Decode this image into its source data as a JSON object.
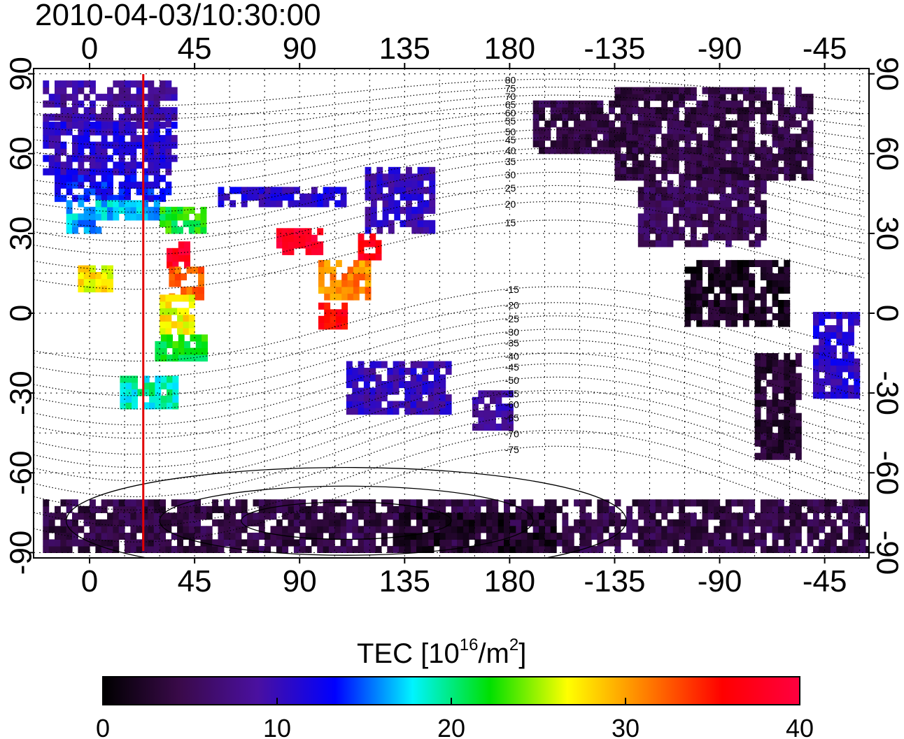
{
  "title": "2010-04-03/10:30:00",
  "map": {
    "lon_ticks": [
      "0",
      "45",
      "90",
      "135",
      "180",
      "-135",
      "-90",
      "-45"
    ],
    "lat_ticks": [
      "90",
      "60",
      "30",
      "0",
      "-30",
      "-60",
      "-90"
    ],
    "lon_tick_values": [
      0,
      45,
      90,
      135,
      180,
      225,
      270,
      315
    ],
    "lat_tick_values": [
      90,
      60,
      30,
      0,
      -30,
      -60,
      -90
    ],
    "lon_range": [
      -24,
      334
    ],
    "lat_range": [
      -92,
      92
    ],
    "marker_longitude": 23,
    "marker_color": "#e00000",
    "dip_contours": [
      {
        "label": "80",
        "lat": 83,
        "amp": 5
      },
      {
        "label": "75",
        "lat": 79,
        "amp": 6
      },
      {
        "label": "70",
        "lat": 75,
        "amp": 7
      },
      {
        "label": "65",
        "lat": 71,
        "amp": 8
      },
      {
        "label": "60",
        "lat": 67,
        "amp": 9
      },
      {
        "label": "55",
        "lat": 63,
        "amp": 10
      },
      {
        "label": "50",
        "lat": 58,
        "amp": 11
      },
      {
        "label": "45",
        "lat": 54,
        "amp": 12
      },
      {
        "label": "40",
        "lat": 50,
        "amp": 12
      },
      {
        "label": "35",
        "lat": 45,
        "amp": 13
      },
      {
        "label": "30",
        "lat": 40,
        "amp": 13
      },
      {
        "label": "25",
        "lat": 35,
        "amp": 13
      },
      {
        "label": "20",
        "lat": 29,
        "amp": 13
      },
      {
        "label": "15",
        "lat": 22,
        "amp": 13
      },
      {
        "label": "-15",
        "lat": -4,
        "amp": 14
      },
      {
        "label": "-20",
        "lat": -10,
        "amp": 14
      },
      {
        "label": "-25",
        "lat": -16,
        "amp": 15
      },
      {
        "label": "-30",
        "lat": -21,
        "amp": 15
      },
      {
        "label": "-35",
        "lat": -26,
        "amp": 16
      },
      {
        "label": "-40",
        "lat": -31,
        "amp": 16
      },
      {
        "label": "-45",
        "lat": -36,
        "amp": 17
      },
      {
        "label": "-50",
        "lat": -41,
        "amp": 17
      },
      {
        "label": "-55",
        "lat": -46,
        "amp": 17
      },
      {
        "label": "-60",
        "lat": -51,
        "amp": 18
      },
      {
        "label": "-65",
        "lat": -56,
        "amp": 18
      },
      {
        "label": "-70",
        "lat": -62,
        "amp": 18
      },
      {
        "label": "-75",
        "lat": -68,
        "amp": 18
      }
    ],
    "tec_regions": [
      {
        "lon": [
          -20,
          37
        ],
        "lat": [
          70,
          86
        ],
        "tec": 9
      },
      {
        "lon": [
          -20,
          37
        ],
        "lat": [
          52,
          70
        ],
        "tec": 11
      },
      {
        "lon": [
          -15,
          33
        ],
        "lat": [
          42,
          52
        ],
        "tec": 13
      },
      {
        "lon": [
          -10,
          32
        ],
        "lat": [
          35,
          42
        ],
        "tec": 17
      },
      {
        "lon": [
          -10,
          5
        ],
        "lat": [
          30,
          35
        ],
        "tec": 16
      },
      {
        "lon": [
          30,
          48
        ],
        "lat": [
          30,
          40
        ],
        "tec": 22
      },
      {
        "lon": [
          33,
          42
        ],
        "lat": [
          17,
          27
        ],
        "tec": 38
      },
      {
        "lon": [
          34,
          48
        ],
        "lat": [
          5,
          17
        ],
        "tec": 32
      },
      {
        "lon": [
          30,
          45
        ],
        "lat": [
          -8,
          5
        ],
        "tec": 27
      },
      {
        "lon": [
          28,
          50
        ],
        "lat": [
          -18,
          -8
        ],
        "tec": 22
      },
      {
        "lon": [
          13,
          37
        ],
        "lat": [
          -36,
          -24
        ],
        "tec": 19
      },
      {
        "lon": [
          -5,
          8
        ],
        "lat": [
          8,
          16
        ],
        "tec": 27
      },
      {
        "lon": [
          80,
          100
        ],
        "lat": [
          22,
          32
        ],
        "tec": 39
      },
      {
        "lon": [
          98,
          120
        ],
        "lat": [
          5,
          18
        ],
        "tec": 31
      },
      {
        "lon": [
          98,
          110
        ],
        "lat": [
          -6,
          3
        ],
        "tec": 36
      },
      {
        "lon": [
          55,
          110
        ],
        "lat": [
          40,
          47
        ],
        "tec": 11
      },
      {
        "lon": [
          118,
          148
        ],
        "lat": [
          30,
          55
        ],
        "tec": 10
      },
      {
        "lon": [
          115,
          125
        ],
        "lat": [
          20,
          28
        ],
        "tec": 37
      },
      {
        "lon": [
          110,
          155
        ],
        "lat": [
          -38,
          -20
        ],
        "tec": 10
      },
      {
        "lon": [
          164,
          180
        ],
        "lat": [
          -44,
          -30
        ],
        "tec": 9
      },
      {
        "lon": [
          190,
          225
        ],
        "lat": [
          60,
          78
        ],
        "tec": 4
      },
      {
        "lon": [
          225,
          310
        ],
        "lat": [
          50,
          84
        ],
        "tec": 4
      },
      {
        "lon": [
          235,
          290
        ],
        "lat": [
          25,
          50
        ],
        "tec": 5
      },
      {
        "lon": [
          255,
          300
        ],
        "lat": [
          -5,
          20
        ],
        "tec": 2
      },
      {
        "lon": [
          310,
          330
        ],
        "lat": [
          -32,
          0
        ],
        "tec": 11
      },
      {
        "lon": [
          285,
          305
        ],
        "lat": [
          -55,
          -15
        ],
        "tec": 3
      },
      {
        "lon": [
          -20,
          334
        ],
        "lat": [
          -90,
          -72
        ],
        "tec": 4
      },
      {
        "lon": [
          130,
          200
        ],
        "lat": [
          -90,
          -77
        ],
        "tec": 2
      }
    ]
  },
  "colorbar": {
    "label_main": "TEC  [10",
    "label_sup1": "16",
    "label_mid": "/m",
    "label_sup2": "2",
    "label_end": "]",
    "ticks": [
      "0",
      "10",
      "20",
      "30",
      "40"
    ],
    "range": [
      0,
      40
    ],
    "stops": [
      "#000000",
      "#3a0a4a",
      "#4a10a0",
      "#0000ff",
      "#00f4ff",
      "#00e000",
      "#ffff00",
      "#ff8000",
      "#ff0000",
      "#ff0040"
    ]
  }
}
